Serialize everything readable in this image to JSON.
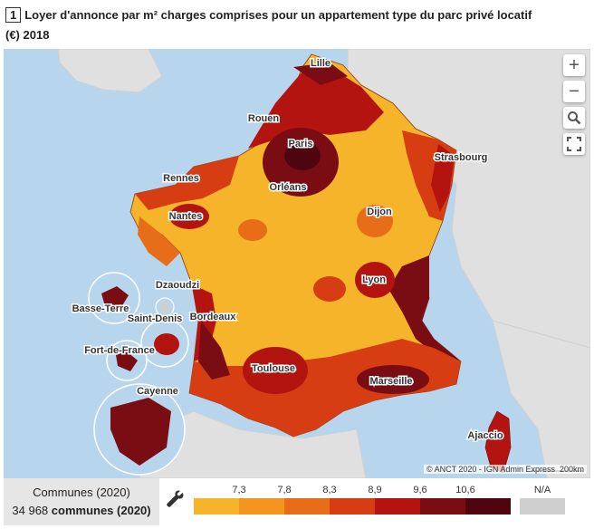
{
  "title": {
    "number": "1",
    "text": "Loyer d'annonce par m² charges comprises pour un appartement type du parc privé locatif (€) 2018"
  },
  "map": {
    "cities": [
      "Lille",
      "Rouen",
      "Paris",
      "Strasbourg",
      "Rennes",
      "Orléans",
      "Nantes",
      "Dijon",
      "Dzaoudzi",
      "Lyon",
      "Basse-Terre",
      "Saint-Denis",
      "Bordeaux",
      "Fort-de-France",
      "Toulouse",
      "Marseille",
      "Cayenne",
      "Ajaccio"
    ],
    "attribution": "© ANCT 2020 - IGN Admin Express",
    "scalebar": "200km",
    "sea_color": "#b7d6ee",
    "neighbor_color": "#e0e0e0"
  },
  "controls": {
    "zoom_in": "+",
    "zoom_out": "−",
    "search": "search-icon",
    "fullscreen": "fullscreen-icon"
  },
  "legend": {
    "label": "Communes (2020)",
    "count_number": "34 968",
    "count_unit": "communes (2020)",
    "ticks": [
      "7,3",
      "7,8",
      "8,3",
      "8,9",
      "9,6",
      "10,6"
    ],
    "na_label": "N/A",
    "colors": [
      "#f5b42a",
      "#f3951e",
      "#e76d18",
      "#d63d12",
      "#b41410",
      "#7a0c14",
      "#4f0510"
    ],
    "na_color": "#cfcfcf"
  }
}
